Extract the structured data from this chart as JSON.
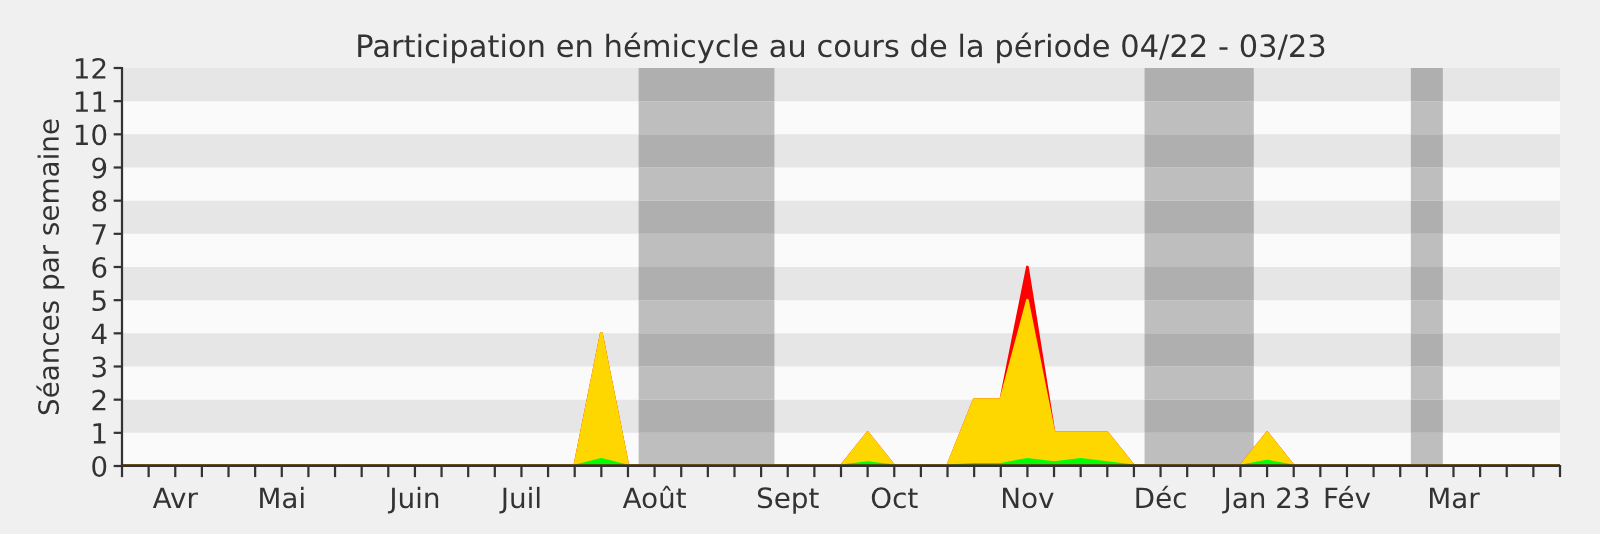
{
  "chart_data": {
    "type": "area",
    "title": "Participation en hémicycle au cours de la période 04/22 - 03/23",
    "ylabel": "Séances par semaine",
    "categories": [
      null,
      null,
      "Avr",
      null,
      null,
      null,
      "Mai",
      null,
      null,
      null,
      null,
      "Juin",
      null,
      null,
      null,
      "Juil",
      null,
      null,
      null,
      null,
      "Août",
      null,
      null,
      null,
      null,
      "Sept",
      null,
      null,
      null,
      "Oct",
      null,
      null,
      null,
      null,
      "Nov",
      null,
      null,
      null,
      null,
      "Déc",
      null,
      null,
      null,
      "Jan 23",
      null,
      null,
      "Fév",
      null,
      null,
      null,
      "Mar",
      null,
      null,
      null,
      null
    ],
    "series": [
      {
        "color": "#ff0000",
        "values": [
          0,
          0,
          0,
          0,
          0,
          0,
          0,
          0,
          0,
          0,
          0,
          0,
          0,
          0,
          0,
          0,
          0,
          0,
          4,
          0,
          0,
          0,
          0,
          0,
          0,
          0,
          0,
          0,
          1,
          0,
          0,
          0,
          2,
          2,
          6,
          1,
          1,
          1,
          0,
          0,
          0,
          0,
          0,
          1,
          0,
          0,
          0,
          0,
          0,
          0,
          0,
          0,
          0,
          0,
          0
        ]
      },
      {
        "color": "#ffd700",
        "values": [
          0,
          0,
          0,
          0,
          0,
          0,
          0,
          0,
          0,
          0,
          0,
          0,
          0,
          0,
          0,
          0,
          0,
          0,
          4,
          0,
          0,
          0,
          0,
          0,
          0,
          0,
          0,
          0,
          1,
          0,
          0,
          0,
          2,
          2,
          5,
          1,
          1,
          1,
          0,
          0,
          0,
          0,
          0,
          1,
          0,
          0,
          0,
          0,
          0,
          0,
          0,
          0,
          0,
          0,
          0
        ]
      },
      {
        "color": "#00ff00",
        "values": [
          0,
          0,
          0,
          0,
          0,
          0,
          0,
          0,
          0,
          0,
          0,
          0,
          0,
          0,
          0,
          0,
          0,
          0,
          0.2,
          0,
          0,
          0,
          0,
          0,
          0,
          0,
          0,
          0,
          0.1,
          0,
          0,
          0,
          0.05,
          0.05,
          0.2,
          0.1,
          0.2,
          0.1,
          0,
          0,
          0,
          0,
          0,
          0.15,
          0,
          0,
          0,
          0,
          0,
          0,
          0,
          0,
          0,
          0,
          0
        ]
      }
    ],
    "ylim": [
      0,
      12
    ],
    "yticks": [
      0,
      1,
      2,
      3,
      4,
      5,
      6,
      7,
      8,
      9,
      10,
      11,
      12
    ],
    "grid": false
  }
}
